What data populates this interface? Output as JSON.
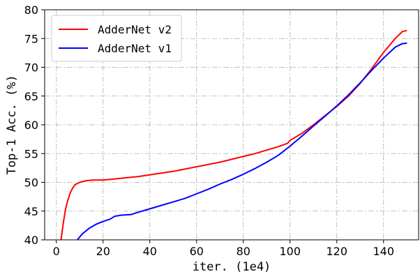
{
  "chart_data": {
    "type": "line",
    "title": "",
    "xlabel": "iter. (1e4)",
    "ylabel": "Top-1 Acc. (%)",
    "xlim": [
      -5,
      155
    ],
    "ylim": [
      40,
      80
    ],
    "xticks": [
      0,
      20,
      40,
      60,
      80,
      100,
      120,
      140
    ],
    "yticks": [
      40,
      45,
      50,
      55,
      60,
      65,
      70,
      75,
      80
    ],
    "grid": true,
    "grid_style": "dash-dot",
    "legend_position": "top-left",
    "series": [
      {
        "name": "AdderNet v2",
        "color": "#ff0000",
        "points": [
          [
            2,
            40
          ],
          [
            3,
            43
          ],
          [
            4,
            45.5
          ],
          [
            5,
            47
          ],
          [
            6,
            48.2
          ],
          [
            7,
            49
          ],
          [
            8,
            49.6
          ],
          [
            10,
            50
          ],
          [
            13,
            50.3
          ],
          [
            16,
            50.4
          ],
          [
            20,
            50.4
          ],
          [
            25,
            50.6
          ],
          [
            30,
            50.8
          ],
          [
            35,
            51
          ],
          [
            40,
            51.3
          ],
          [
            45,
            51.6
          ],
          [
            50,
            51.9
          ],
          [
            55,
            52.3
          ],
          [
            60,
            52.7
          ],
          [
            65,
            53.1
          ],
          [
            70,
            53.5
          ],
          [
            75,
            54
          ],
          [
            80,
            54.5
          ],
          [
            85,
            55
          ],
          [
            90,
            55.6
          ],
          [
            95,
            56.2
          ],
          [
            99,
            56.8
          ],
          [
            100,
            57.3
          ],
          [
            105,
            58.5
          ],
          [
            110,
            60
          ],
          [
            115,
            61.6
          ],
          [
            120,
            63.2
          ],
          [
            125,
            65
          ],
          [
            130,
            67.2
          ],
          [
            135,
            69.8
          ],
          [
            140,
            72.6
          ],
          [
            145,
            75
          ],
          [
            148,
            76.2
          ],
          [
            150,
            76.4
          ]
        ]
      },
      {
        "name": "AdderNet v1",
        "color": "#0000ff",
        "points": [
          [
            9,
            40
          ],
          [
            11,
            41
          ],
          [
            14,
            42
          ],
          [
            17,
            42.7
          ],
          [
            20,
            43.2
          ],
          [
            23,
            43.6
          ],
          [
            25,
            44.1
          ],
          [
            28,
            44.3
          ],
          [
            32,
            44.4
          ],
          [
            35,
            44.8
          ],
          [
            40,
            45.4
          ],
          [
            45,
            46
          ],
          [
            50,
            46.6
          ],
          [
            55,
            47.2
          ],
          [
            60,
            48
          ],
          [
            65,
            48.8
          ],
          [
            70,
            49.7
          ],
          [
            75,
            50.5
          ],
          [
            80,
            51.4
          ],
          [
            85,
            52.4
          ],
          [
            90,
            53.5
          ],
          [
            95,
            54.7
          ],
          [
            100,
            56.3
          ],
          [
            105,
            58
          ],
          [
            110,
            59.8
          ],
          [
            115,
            61.5
          ],
          [
            120,
            63.3
          ],
          [
            125,
            65.2
          ],
          [
            130,
            67.3
          ],
          [
            135,
            69.5
          ],
          [
            140,
            71.6
          ],
          [
            145,
            73.5
          ],
          [
            148,
            74.1
          ],
          [
            150,
            74.2
          ]
        ]
      }
    ]
  }
}
